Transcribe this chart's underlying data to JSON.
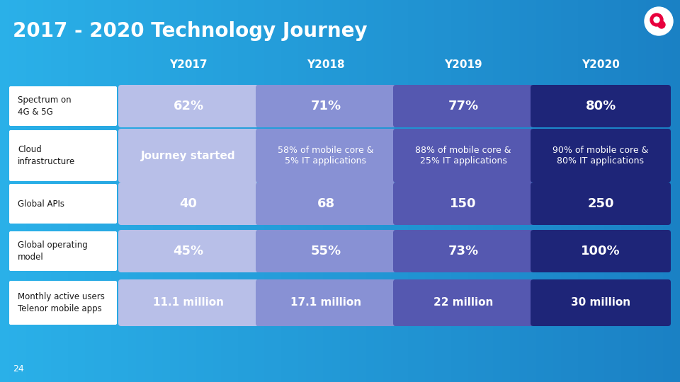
{
  "title": "2017 - 2020 Technology Journey",
  "title_color": "#ffffff",
  "title_fontsize": 20,
  "bg_color_left": "#2ab0e8",
  "bg_color_right": "#1a80c4",
  "page_number": "24",
  "columns": [
    "Y2017",
    "Y2018",
    "Y2019",
    "Y2020"
  ],
  "col_colors": [
    "#b8bfe8",
    "#8891d4",
    "#5558b0",
    "#1e2578"
  ],
  "rows": [
    {
      "label": "Spectrum on\n4G & 5G",
      "values": [
        "62%",
        "71%",
        "77%",
        "80%"
      ],
      "text_sizes": [
        13,
        13,
        13,
        13
      ],
      "bold": [
        true,
        true,
        true,
        true
      ]
    },
    {
      "label": "Cloud\ninfrastructure",
      "values": [
        "Journey started",
        "58% of mobile core &\n5% IT applications",
        "88% of mobile core &\n25% IT applications",
        "90% of mobile core &\n80% IT applications"
      ],
      "text_sizes": [
        11,
        9,
        9,
        9
      ],
      "bold": [
        true,
        false,
        false,
        false
      ]
    },
    {
      "label": "Global APIs",
      "values": [
        "40",
        "68",
        "150",
        "250"
      ],
      "text_sizes": [
        13,
        13,
        13,
        13
      ],
      "bold": [
        true,
        true,
        true,
        true
      ]
    },
    {
      "label": "Global operating\nmodel",
      "values": [
        "45%",
        "55%",
        "73%",
        "100%"
      ],
      "text_sizes": [
        13,
        13,
        13,
        13
      ],
      "bold": [
        true,
        true,
        true,
        true
      ]
    },
    {
      "label": "Monthly active users\nTelenor mobile apps",
      "values": [
        "11.1 million",
        "17.1 million",
        "22 million",
        "30 million"
      ],
      "text_sizes": [
        11,
        11,
        11,
        11
      ],
      "bold": [
        true,
        true,
        true,
        true
      ]
    }
  ]
}
